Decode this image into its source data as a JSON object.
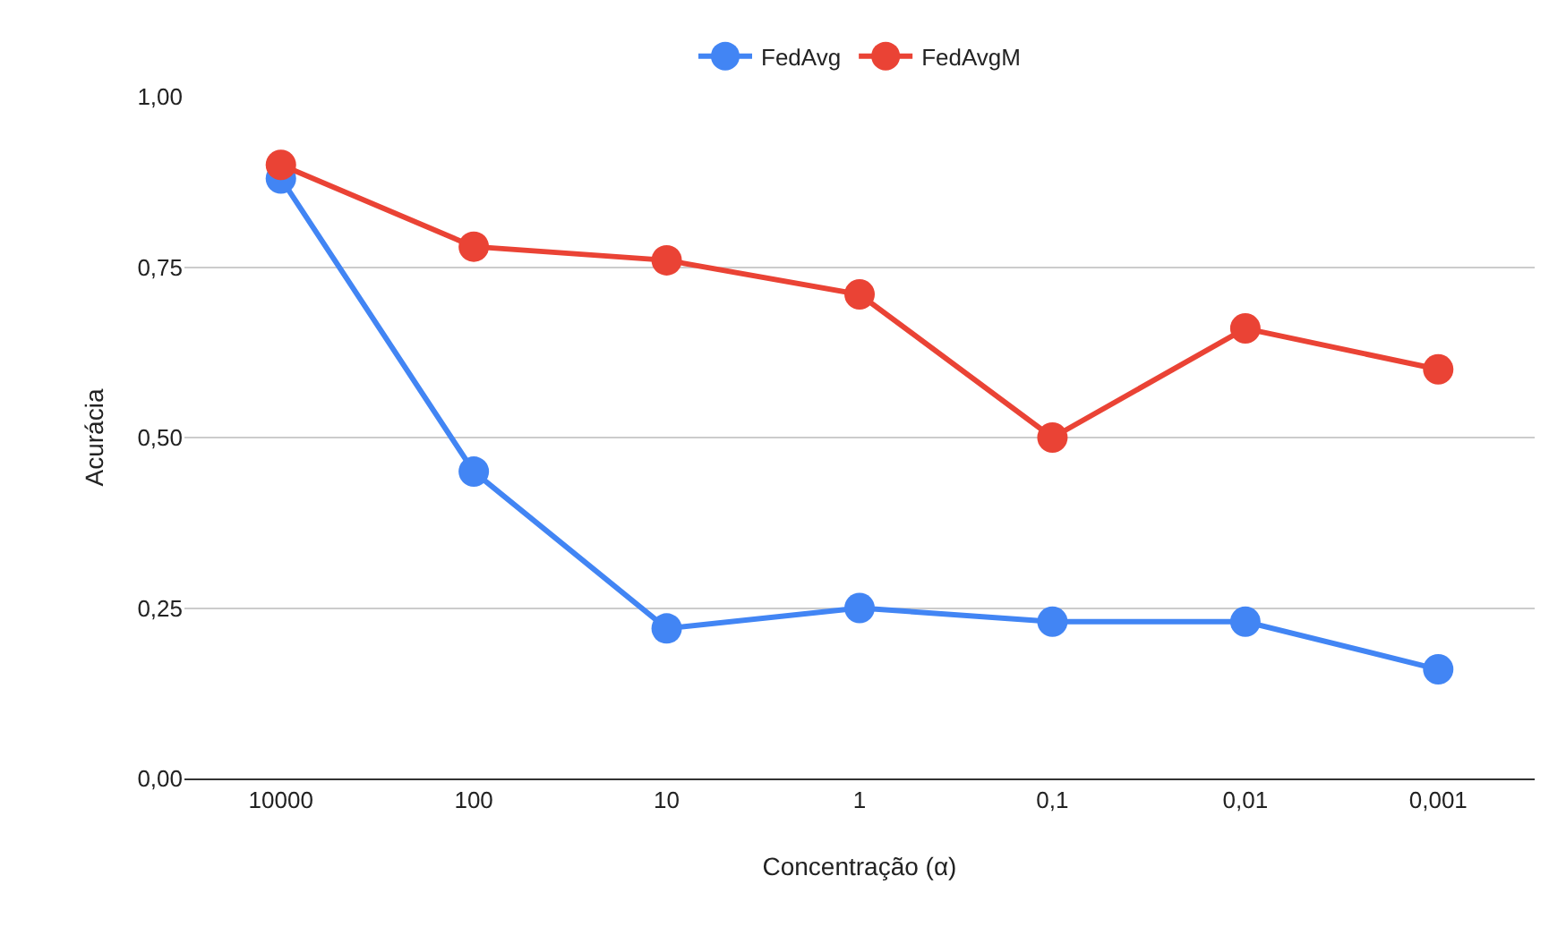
{
  "chart_data": {
    "type": "line",
    "xlabel": "Concentração (α)",
    "ylabel": "Acurácia",
    "categories": [
      "10000",
      "100",
      "10",
      "1",
      "0,1",
      "0,01",
      "0,001"
    ],
    "series": [
      {
        "name": "FedAvg",
        "color": "#4285f4",
        "values": [
          0.88,
          0.45,
          0.22,
          0.25,
          0.23,
          0.23,
          0.16
        ]
      },
      {
        "name": "FedAvgM",
        "color": "#ea4335",
        "values": [
          0.9,
          0.78,
          0.76,
          0.71,
          0.5,
          0.66,
          0.6
        ]
      }
    ],
    "ylim": [
      0,
      1
    ],
    "yticks": [
      {
        "value": 0,
        "label": "0,00"
      },
      {
        "value": 0.25,
        "label": "0,25"
      },
      {
        "value": 0.5,
        "label": "0,50"
      },
      {
        "value": 0.75,
        "label": "0,75"
      },
      {
        "value": 1,
        "label": "1,00"
      }
    ],
    "grid": "y",
    "legend": "top",
    "marker": "circle",
    "line_style": "solid"
  }
}
